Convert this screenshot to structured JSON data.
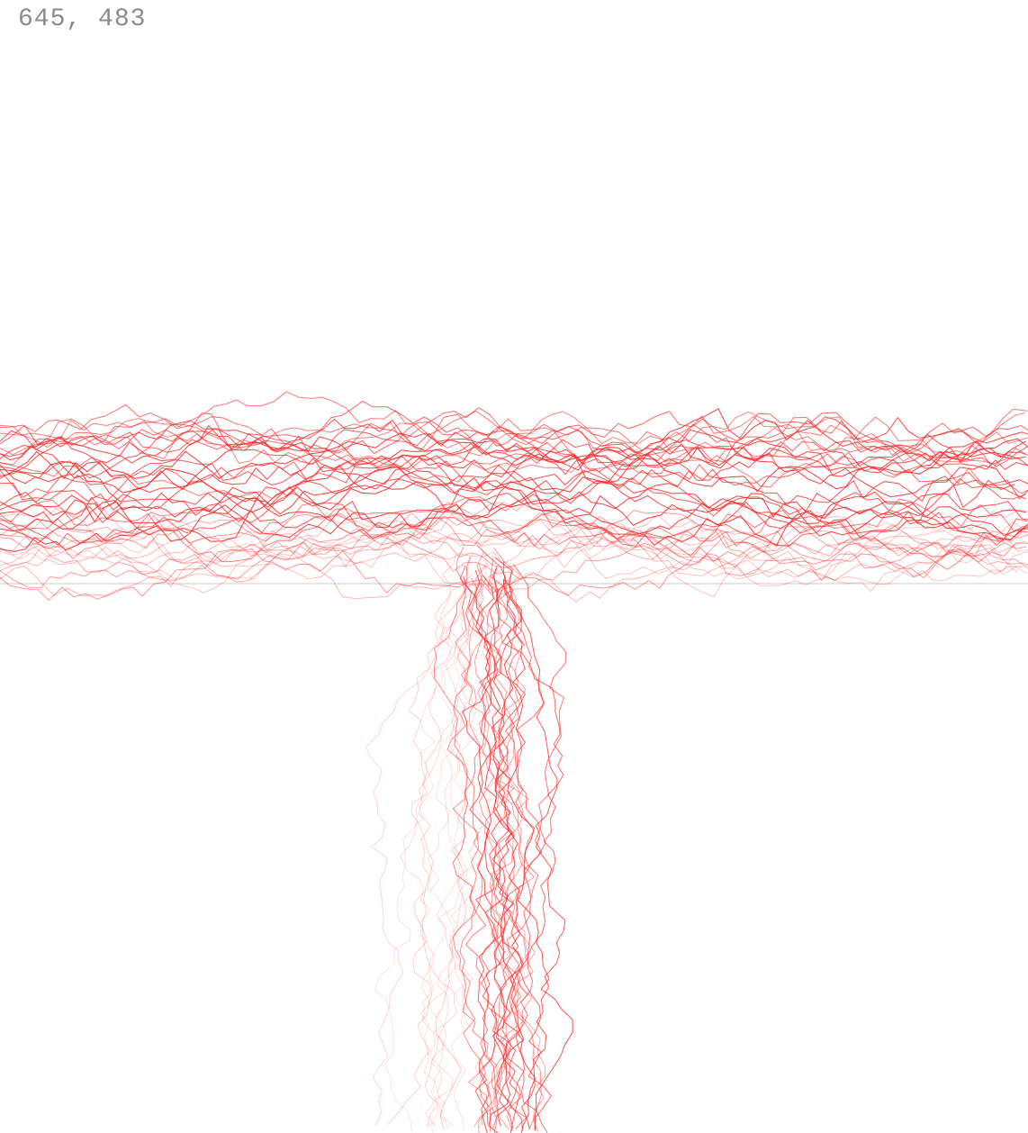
{
  "cursor_readout": "645, 483",
  "colors": {
    "background": "#ffffff",
    "trace": "#ff2a2a",
    "baseline": "#dcdcdc",
    "readout_text": "#8a8a8a"
  },
  "traces": {
    "horizontal_band_count": 42,
    "vertical_stem_count": 34
  }
}
